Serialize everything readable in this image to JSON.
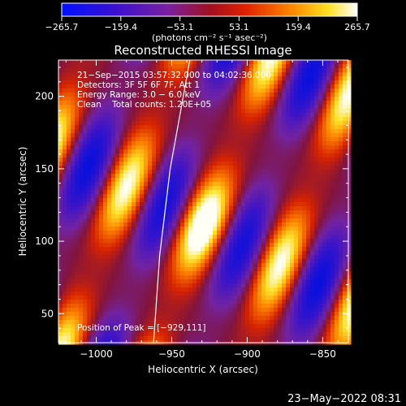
{
  "chart_data": {
    "type": "heatmap",
    "title": "Reconstructed RHESSI Image",
    "xlabel": "Heliocentric X (arcsec)",
    "ylabel": "Heliocentric Y (arcsec)",
    "xlim": [
      -1025,
      -833
    ],
    "ylim": [
      30,
      225
    ],
    "x_ticks": [
      -1000,
      -950,
      -900,
      -850
    ],
    "y_ticks": [
      50,
      100,
      150,
      200
    ],
    "x_tick_labels": [
      "−1000",
      "−950",
      "−900",
      "−850"
    ],
    "y_tick_labels": [
      "50",
      "100",
      "150",
      "200"
    ],
    "colorbar": {
      "range": [
        -265.7,
        265.7
      ],
      "tick_values": [
        -265.7,
        -159.4,
        -53.1,
        53.1,
        159.4,
        265.7
      ],
      "tick_labels": [
        "−265.7",
        "−159.4",
        "−53.1",
        "53.1",
        "159.4",
        "265.7"
      ],
      "units_label": "(photons cm⁻² s⁻¹ asec⁻²)",
      "colormap": "blue-purple-red-yellow-white"
    },
    "annotations": [
      "21−Sep−2015 03:57:32.000 to 04:02:36.000",
      "Detectors: 3F 5F 6F 7F, Att 1",
      "Energy Range: 3.0 − 6.0 keV",
      "Clean    Total counts: 1.20E+05"
    ],
    "peak_label": "Position of Peak = [−929,111]",
    "peak": [
      -929,
      111
    ],
    "limb_curve": [
      [
        -962,
        30
      ],
      [
        -958,
        90
      ],
      [
        -951,
        150
      ],
      [
        -938,
        225
      ]
    ],
    "grid": false,
    "legend": "none"
  },
  "footer": {
    "timestamp": "23−May−2022 08:31"
  }
}
